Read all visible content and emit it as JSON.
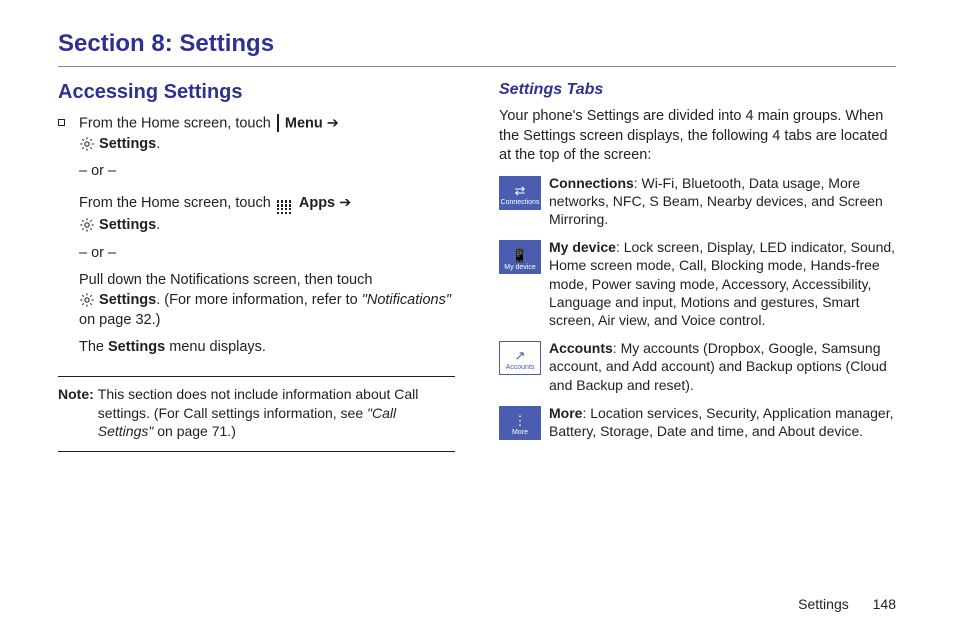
{
  "section_title": "Section 8: Settings",
  "left": {
    "heading": "Accessing Settings",
    "line1_a": "From the Home screen, touch ",
    "menu_bold": "Menu",
    "arrow": " ➔",
    "settings_bold": "Settings",
    "period": ".",
    "or": "– or –",
    "line2_a": "From the Home screen, touch ",
    "apps_bold": "Apps",
    "line3": "Pull down the Notifications screen, then touch",
    "line3b": ". (For more information, refer to ",
    "line3c": "\"Notifications\"",
    "line3d": " on page 32.)",
    "line4a": "The ",
    "line4b": "Settings",
    "line4c": " menu displays.",
    "note_label": "Note:",
    "note_a": "This section does not include information about Call settings. (For Call settings information, see ",
    "note_b": "\"Call Settings\"",
    "note_c": " on page 71.)"
  },
  "right": {
    "heading": "Settings Tabs",
    "intro": "Your phone's Settings are divided into 4 main groups. When the Settings screen displays, the following 4 tabs are located at the top of the screen:",
    "tabs": [
      {
        "icon_label": "Connections",
        "glyph": "⇄",
        "title": "Connections",
        "desc": ": Wi-Fi, Bluetooth, Data usage, More networks, NFC, S Beam, Nearby devices, and Screen Mirroring.",
        "style": "blue"
      },
      {
        "icon_label": "My device",
        "glyph": "📱",
        "title": "My device",
        "desc": ": Lock screen, Display, LED indicator, Sound, Home screen mode, Call, Blocking mode, Hands-free mode, Power saving mode, Accessory, Accessibility, Language and input, Motions and gestures, Smart screen, Air view, and Voice control.",
        "style": "blue"
      },
      {
        "icon_label": "Accounts",
        "glyph": "↗",
        "title": "Accounts",
        "desc": ": My accounts (Dropbox, Google, Samsung account, and Add account) and Backup options (Cloud and Backup and reset).",
        "style": "white"
      },
      {
        "icon_label": "More",
        "glyph": "⋮",
        "title": "More",
        "desc": ": Location services, Security, Application manager, Battery, Storage, Date and time, and About device.",
        "style": "blue"
      }
    ]
  },
  "footer": {
    "label": "Settings",
    "page": "148"
  },
  "colors": {
    "brand": "#2e3192",
    "tab_bg": "#4a5db0"
  }
}
